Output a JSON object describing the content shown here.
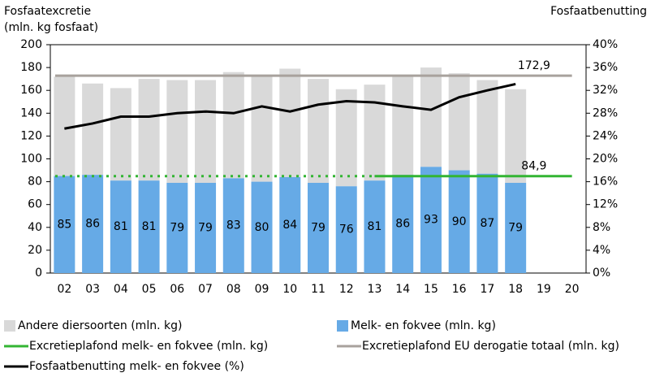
{
  "chart_data": {
    "type": "bar",
    "ylabel": [
      "Fosfaatexcretie",
      "(mln. kg fosfaat)"
    ],
    "y2label": "Fosfaatbenutting",
    "categories": [
      "02",
      "03",
      "04",
      "05",
      "06",
      "07",
      "08",
      "09",
      "10",
      "11",
      "12",
      "13",
      "14",
      "15",
      "16",
      "17",
      "18",
      "19",
      "20"
    ],
    "stacked": true,
    "series": [
      {
        "name": "Andere diersoorten (mln. kg)",
        "kind": "bar",
        "color": "#d9d9d9",
        "values": [
          87,
          80,
          81,
          89,
          90,
          90,
          93,
          93,
          95,
          91,
          85,
          84,
          87,
          87,
          85,
          82,
          82,
          null,
          null
        ]
      },
      {
        "name": "Melk- en fokvee (mln. kg)",
        "kind": "bar",
        "color": "#66aae6",
        "stack_base": true,
        "values": [
          85,
          86,
          81,
          81,
          79,
          79,
          83,
          80,
          84,
          79,
          76,
          81,
          86,
          93,
          90,
          87,
          79,
          null,
          null
        ]
      },
      {
        "name": "Excretieplafond melk- en fokvee (mln. kg)",
        "kind": "line",
        "color": "#33b533",
        "dotted_range": [
          "02",
          "13"
        ],
        "values": [
          84.9,
          84.9,
          84.9,
          84.9,
          84.9,
          84.9,
          84.9,
          84.9,
          84.9,
          84.9,
          84.9,
          84.9,
          84.9,
          84.9,
          84.9,
          84.9,
          84.9,
          84.9,
          84.9
        ],
        "value_labels": [
          null,
          null,
          null,
          null,
          null,
          null,
          null,
          null,
          null,
          null,
          null,
          null,
          null,
          null,
          null,
          null,
          null,
          "84,9",
          null
        ]
      },
      {
        "name": "Excretieplafond EU derogatie totaal (mln. kg)",
        "kind": "line",
        "color": "#a8a29d",
        "values": [
          172.9,
          172.9,
          172.9,
          172.9,
          172.9,
          172.9,
          172.9,
          172.9,
          172.9,
          172.9,
          172.9,
          172.9,
          172.9,
          172.9,
          172.9,
          172.9,
          172.9,
          172.9,
          172.9
        ],
        "value_labels": [
          null,
          null,
          null,
          null,
          null,
          null,
          null,
          null,
          null,
          null,
          null,
          null,
          null,
          null,
          null,
          null,
          null,
          "172,9",
          null
        ]
      },
      {
        "name": "Fosfaatbenutting melk- en fokvee (%)",
        "kind": "line",
        "color": "#000000",
        "axis": "y2",
        "values": [
          25.3,
          26.2,
          27.4,
          27.4,
          28.0,
          28.3,
          28.0,
          29.2,
          28.3,
          29.5,
          30.1,
          29.9,
          29.2,
          28.6,
          30.8,
          32.0,
          33.1,
          null,
          null
        ]
      }
    ],
    "ylim": [
      0,
      200
    ],
    "yticks": [
      0,
      20,
      40,
      60,
      80,
      100,
      120,
      140,
      160,
      180,
      200
    ],
    "y2lim": [
      0,
      40
    ],
    "y2ticks": [
      {
        "value": 0,
        "label": "0%"
      },
      {
        "value": 4,
        "label": "4%"
      },
      {
        "value": 8,
        "label": "8%"
      },
      {
        "value": 12,
        "label": "12%"
      },
      {
        "value": 16,
        "label": "16%"
      },
      {
        "value": 20,
        "label": "20%"
      },
      {
        "value": 24,
        "label": "24%"
      },
      {
        "value": 28,
        "label": "28%"
      },
      {
        "value": 32,
        "label": "32%"
      },
      {
        "value": 36,
        "label": "36%"
      },
      {
        "value": 40,
        "label": "40%"
      }
    ],
    "grid": false
  }
}
